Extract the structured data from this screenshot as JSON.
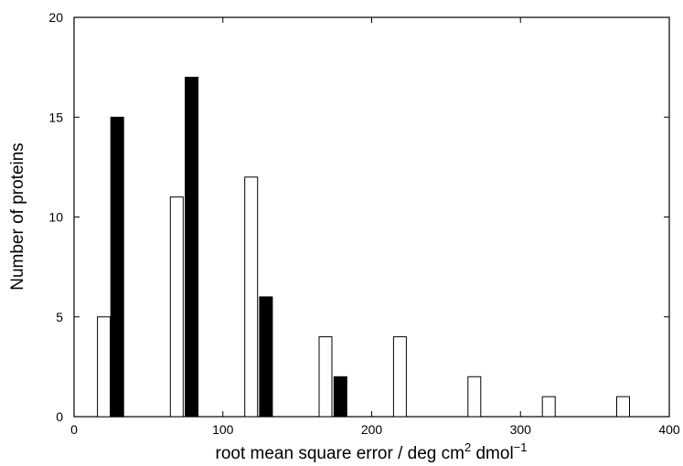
{
  "chart_data": {
    "type": "bar",
    "title": "",
    "xlabel": "root mean square error / deg cm",
    "xlabel_sup1": "2",
    "xlabel_mid": " dmol",
    "xlabel_sup2": "−1",
    "ylabel": "Number of proteins",
    "xlim": [
      0,
      400
    ],
    "ylim": [
      0,
      20
    ],
    "xticks": [
      0,
      100,
      200,
      300,
      400
    ],
    "yticks": [
      0,
      5,
      10,
      15,
      20
    ],
    "grid": false,
    "legend": "none",
    "series": [
      {
        "style": "open",
        "color": "#ffffff",
        "points": [
          {
            "x": 20,
            "y": 5
          },
          {
            "x": 69,
            "y": 11
          },
          {
            "x": 119,
            "y": 12
          },
          {
            "x": 169,
            "y": 4
          },
          {
            "x": 219,
            "y": 4
          },
          {
            "x": 269,
            "y": 2
          },
          {
            "x": 319,
            "y": 1
          },
          {
            "x": 369,
            "y": 1
          }
        ]
      },
      {
        "style": "filled",
        "color": "#000000",
        "points": [
          {
            "x": 29,
            "y": 15
          },
          {
            "x": 79,
            "y": 17
          },
          {
            "x": 129,
            "y": 6
          },
          {
            "x": 179,
            "y": 2
          }
        ]
      }
    ]
  }
}
